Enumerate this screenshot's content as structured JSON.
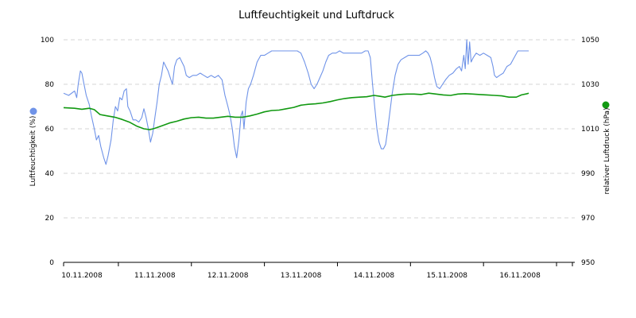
{
  "chart_data": {
    "type": "line",
    "title": "Luftfeuchtigkeit und Luftdruck",
    "x_tick_labels": [
      "10.11.2008",
      "11.11.2008",
      "12.11.2008",
      "13.11.2008",
      "14.11.2008",
      "15.11.2008",
      "16.11.2008"
    ],
    "y_left": {
      "label": "Luftfeuchtigkeit (%)",
      "ticks": [
        "0",
        "20",
        "40",
        "60",
        "80",
        "100"
      ],
      "range": [
        0,
        100
      ]
    },
    "y_right": {
      "label": "relativer Luftdruck (hPa)",
      "ticks": [
        "950",
        "970",
        "990",
        "1010",
        "1030",
        "1050"
      ],
      "range": [
        950,
        1050
      ]
    },
    "x_range_days": [
      -0.25,
      6.75
    ],
    "grid": true,
    "series": [
      {
        "axis": "left",
        "color": "#6f93e8",
        "points": [
          [
            -0.25,
            76
          ],
          [
            -0.18,
            75
          ],
          [
            -0.1,
            77
          ],
          [
            -0.07,
            74
          ],
          [
            -0.05,
            80
          ],
          [
            -0.02,
            86
          ],
          [
            0.0,
            85
          ],
          [
            0.03,
            80
          ],
          [
            0.06,
            75
          ],
          [
            0.1,
            71
          ],
          [
            0.13,
            66
          ],
          [
            0.17,
            60
          ],
          [
            0.2,
            55
          ],
          [
            0.23,
            57
          ],
          [
            0.26,
            52
          ],
          [
            0.3,
            47
          ],
          [
            0.33,
            44
          ],
          [
            0.36,
            48
          ],
          [
            0.4,
            55
          ],
          [
            0.43,
            64
          ],
          [
            0.46,
            70
          ],
          [
            0.49,
            68
          ],
          [
            0.52,
            74
          ],
          [
            0.55,
            73
          ],
          [
            0.58,
            77
          ],
          [
            0.61,
            78
          ],
          [
            0.63,
            70
          ],
          [
            0.66,
            68
          ],
          [
            0.7,
            64
          ],
          [
            0.74,
            64
          ],
          [
            0.78,
            63
          ],
          [
            0.82,
            65
          ],
          [
            0.85,
            69
          ],
          [
            0.88,
            65
          ],
          [
            0.91,
            60
          ],
          [
            0.94,
            54
          ],
          [
            0.97,
            58
          ],
          [
            1.0,
            65
          ],
          [
            1.03,
            72
          ],
          [
            1.06,
            80
          ],
          [
            1.09,
            84
          ],
          [
            1.12,
            90
          ],
          [
            1.15,
            88
          ],
          [
            1.18,
            86
          ],
          [
            1.2,
            84
          ],
          [
            1.24,
            80
          ],
          [
            1.27,
            88
          ],
          [
            1.3,
            91
          ],
          [
            1.34,
            92
          ],
          [
            1.37,
            90
          ],
          [
            1.4,
            88
          ],
          [
            1.43,
            84
          ],
          [
            1.47,
            83
          ],
          [
            1.52,
            84
          ],
          [
            1.57,
            84
          ],
          [
            1.62,
            85
          ],
          [
            1.67,
            84
          ],
          [
            1.72,
            83
          ],
          [
            1.77,
            84
          ],
          [
            1.82,
            83
          ],
          [
            1.87,
            84
          ],
          [
            1.92,
            82
          ],
          [
            1.96,
            75
          ],
          [
            2.0,
            70
          ],
          [
            2.03,
            66
          ],
          [
            2.06,
            60
          ],
          [
            2.09,
            52
          ],
          [
            2.12,
            47
          ],
          [
            2.15,
            55
          ],
          [
            2.18,
            66
          ],
          [
            2.2,
            68
          ],
          [
            2.22,
            60
          ],
          [
            2.25,
            72
          ],
          [
            2.28,
            78
          ],
          [
            2.31,
            80
          ],
          [
            2.35,
            84
          ],
          [
            2.4,
            90
          ],
          [
            2.45,
            93
          ],
          [
            2.5,
            93
          ],
          [
            2.55,
            94
          ],
          [
            2.6,
            95
          ],
          [
            2.65,
            95
          ],
          [
            2.7,
            95
          ],
          [
            2.75,
            95
          ],
          [
            2.8,
            95
          ],
          [
            2.85,
            95
          ],
          [
            2.9,
            95
          ],
          [
            2.95,
            95
          ],
          [
            3.0,
            94
          ],
          [
            3.05,
            90
          ],
          [
            3.1,
            85
          ],
          [
            3.14,
            80
          ],
          [
            3.18,
            78
          ],
          [
            3.22,
            80
          ],
          [
            3.26,
            83
          ],
          [
            3.3,
            86
          ],
          [
            3.34,
            90
          ],
          [
            3.38,
            93
          ],
          [
            3.43,
            94
          ],
          [
            3.48,
            94
          ],
          [
            3.53,
            95
          ],
          [
            3.58,
            94
          ],
          [
            3.63,
            94
          ],
          [
            3.68,
            94
          ],
          [
            3.73,
            94
          ],
          [
            3.78,
            94
          ],
          [
            3.83,
            94
          ],
          [
            3.88,
            95
          ],
          [
            3.92,
            95
          ],
          [
            3.95,
            92
          ],
          [
            3.98,
            80
          ],
          [
            4.01,
            70
          ],
          [
            4.04,
            60
          ],
          [
            4.07,
            54
          ],
          [
            4.1,
            51
          ],
          [
            4.13,
            51
          ],
          [
            4.16,
            53
          ],
          [
            4.19,
            60
          ],
          [
            4.22,
            68
          ],
          [
            4.25,
            76
          ],
          [
            4.29,
            84
          ],
          [
            4.33,
            89
          ],
          [
            4.37,
            91
          ],
          [
            4.42,
            92
          ],
          [
            4.47,
            93
          ],
          [
            4.52,
            93
          ],
          [
            4.57,
            93
          ],
          [
            4.62,
            93
          ],
          [
            4.67,
            94
          ],
          [
            4.71,
            95
          ],
          [
            4.74,
            94
          ],
          [
            4.77,
            92
          ],
          [
            4.8,
            88
          ],
          [
            4.83,
            83
          ],
          [
            4.86,
            79
          ],
          [
            4.9,
            78
          ],
          [
            4.94,
            80
          ],
          [
            4.98,
            82
          ],
          [
            5.03,
            84
          ],
          [
            5.08,
            85
          ],
          [
            5.13,
            87
          ],
          [
            5.17,
            88
          ],
          [
            5.2,
            86
          ],
          [
            5.23,
            93
          ],
          [
            5.25,
            87
          ],
          [
            5.27,
            100
          ],
          [
            5.29,
            89
          ],
          [
            5.31,
            99
          ],
          [
            5.33,
            90
          ],
          [
            5.36,
            92
          ],
          [
            5.4,
            94
          ],
          [
            5.45,
            93
          ],
          [
            5.5,
            94
          ],
          [
            5.55,
            93
          ],
          [
            5.6,
            92
          ],
          [
            5.63,
            88
          ],
          [
            5.65,
            84
          ],
          [
            5.68,
            83
          ],
          [
            5.72,
            84
          ],
          [
            5.77,
            85
          ],
          [
            5.82,
            88
          ],
          [
            5.87,
            89
          ],
          [
            5.92,
            92
          ],
          [
            5.97,
            95
          ],
          [
            6.05,
            95
          ],
          [
            6.12,
            95
          ]
        ]
      },
      {
        "axis": "right",
        "color": "#119911",
        "points": [
          [
            -0.25,
            1019.5
          ],
          [
            -0.1,
            1019.2
          ],
          [
            0.0,
            1018.8
          ],
          [
            0.1,
            1019.2
          ],
          [
            0.17,
            1018.6
          ],
          [
            0.25,
            1016.4
          ],
          [
            0.35,
            1015.8
          ],
          [
            0.45,
            1015.2
          ],
          [
            0.55,
            1014.2
          ],
          [
            0.65,
            1013.0
          ],
          [
            0.75,
            1011.2
          ],
          [
            0.85,
            1010.0
          ],
          [
            0.93,
            1009.6
          ],
          [
            1.0,
            1010.2
          ],
          [
            1.1,
            1011.4
          ],
          [
            1.2,
            1012.6
          ],
          [
            1.3,
            1013.4
          ],
          [
            1.4,
            1014.4
          ],
          [
            1.5,
            1015.0
          ],
          [
            1.6,
            1015.2
          ],
          [
            1.7,
            1014.8
          ],
          [
            1.8,
            1014.8
          ],
          [
            1.9,
            1015.2
          ],
          [
            2.0,
            1015.6
          ],
          [
            2.1,
            1015.2
          ],
          [
            2.2,
            1015.2
          ],
          [
            2.3,
            1015.8
          ],
          [
            2.4,
            1016.6
          ],
          [
            2.5,
            1017.6
          ],
          [
            2.6,
            1018.2
          ],
          [
            2.7,
            1018.4
          ],
          [
            2.8,
            1019.0
          ],
          [
            2.9,
            1019.6
          ],
          [
            3.0,
            1020.6
          ],
          [
            3.1,
            1021.0
          ],
          [
            3.2,
            1021.2
          ],
          [
            3.3,
            1021.6
          ],
          [
            3.4,
            1022.2
          ],
          [
            3.5,
            1023.0
          ],
          [
            3.6,
            1023.6
          ],
          [
            3.7,
            1024.0
          ],
          [
            3.8,
            1024.2
          ],
          [
            3.9,
            1024.4
          ],
          [
            4.0,
            1025.0
          ],
          [
            4.08,
            1024.6
          ],
          [
            4.15,
            1024.2
          ],
          [
            4.25,
            1025.0
          ],
          [
            4.35,
            1025.4
          ],
          [
            4.45,
            1025.6
          ],
          [
            4.55,
            1025.6
          ],
          [
            4.65,
            1025.4
          ],
          [
            4.75,
            1026.0
          ],
          [
            4.85,
            1025.6
          ],
          [
            4.95,
            1025.2
          ],
          [
            5.05,
            1025.0
          ],
          [
            5.15,
            1025.6
          ],
          [
            5.25,
            1025.8
          ],
          [
            5.35,
            1025.6
          ],
          [
            5.45,
            1025.4
          ],
          [
            5.55,
            1025.2
          ],
          [
            5.65,
            1025.0
          ],
          [
            5.75,
            1024.8
          ],
          [
            5.85,
            1024.2
          ],
          [
            5.95,
            1024.2
          ],
          [
            6.02,
            1025.2
          ],
          [
            6.1,
            1025.8
          ],
          [
            6.12,
            1026.0
          ]
        ]
      }
    ]
  }
}
